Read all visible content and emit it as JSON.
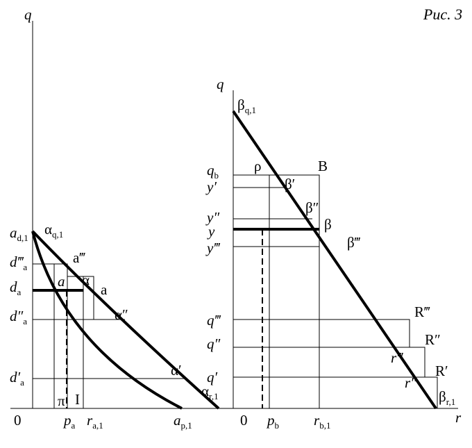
{
  "figure_label": "Рис. 3",
  "left_panel": {
    "labels": [
      {
        "text": "q"
      },
      {
        "text": "0"
      },
      {
        "text": "p",
        "sub": "a"
      },
      {
        "text": "r",
        "sub": "a,1"
      },
      {
        "text": "a",
        "sub": "p,1"
      },
      {
        "text": "a",
        "sub": "d,1"
      },
      {
        "text": "α",
        "sub": "q,1"
      },
      {
        "text": "d‴",
        "sub": "a"
      },
      {
        "text": "a‴"
      },
      {
        "text": "d",
        "sub": "a"
      },
      {
        "text": "a"
      },
      {
        "text": "α"
      },
      {
        "text": "a"
      },
      {
        "text": "d″",
        "sub": "a"
      },
      {
        "text": "α″"
      },
      {
        "text": "d′",
        "sub": "a"
      },
      {
        "text": "α′"
      },
      {
        "text": "α",
        "sub": "r,1"
      },
      {
        "text": "π"
      },
      {
        "text": "I"
      }
    ]
  },
  "right_panel": {
    "labels": [
      {
        "text": "q"
      },
      {
        "text": "β",
        "sub": "q,1"
      },
      {
        "text": "ρ"
      },
      {
        "text": "B"
      },
      {
        "text": "q",
        "sub": "b"
      },
      {
        "text": "β′"
      },
      {
        "text": "y′"
      },
      {
        "text": "y″"
      },
      {
        "text": "β″"
      },
      {
        "text": "y"
      },
      {
        "text": "β"
      },
      {
        "text": "y‴"
      },
      {
        "text": "β‴"
      },
      {
        "text": "q‴"
      },
      {
        "text": "R‴"
      },
      {
        "text": "q″"
      },
      {
        "text": "R″"
      },
      {
        "text": "r‴"
      },
      {
        "text": "q′"
      },
      {
        "text": "R′"
      },
      {
        "text": "r″"
      },
      {
        "text": "β",
        "sub": "r,1"
      },
      {
        "text": "0"
      },
      {
        "text": "p",
        "sub": "b"
      },
      {
        "text": "r",
        "sub": "b,1"
      },
      {
        "text": "r"
      }
    ]
  }
}
